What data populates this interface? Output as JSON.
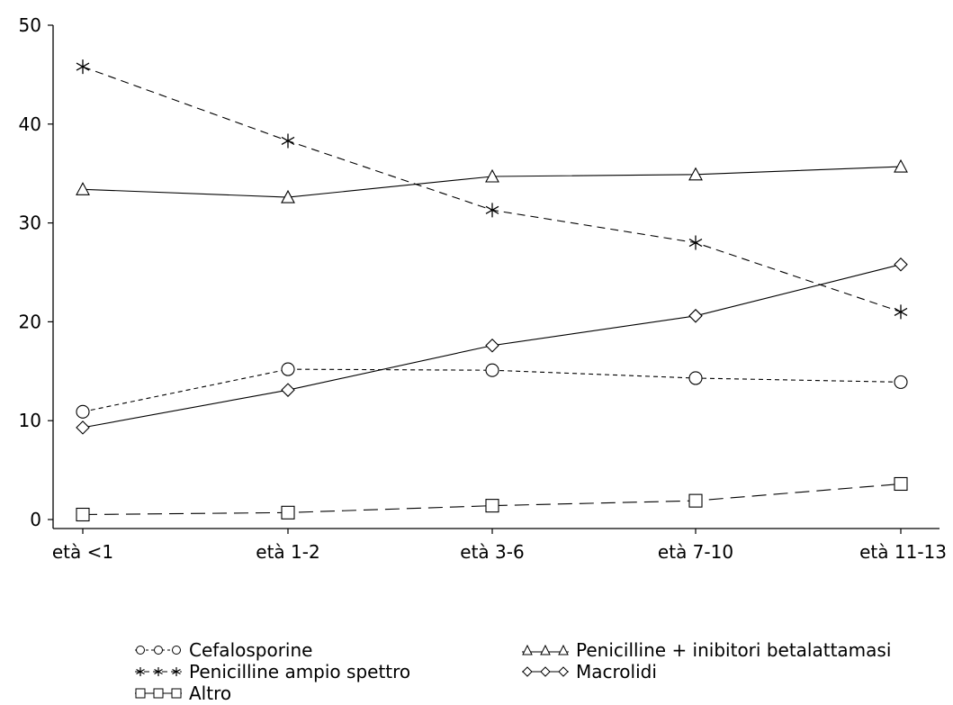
{
  "chart_data": {
    "type": "line",
    "categories": [
      "età <1",
      "età 1-2",
      "età 3-6",
      "età 7-10",
      "età 11-13"
    ],
    "ylim": [
      0,
      50
    ],
    "yticks": [
      0,
      10,
      20,
      30,
      40,
      50
    ],
    "grid": false,
    "legend_position": "bottom",
    "series": [
      {
        "name": "Cefalosporine",
        "marker": "circle",
        "dash": "short",
        "values": [
          10.9,
          15.2,
          15.1,
          14.3,
          13.9
        ]
      },
      {
        "name": "Penicilline + inibitori betalattamasi",
        "marker": "triangle",
        "dash": "solid",
        "values": [
          33.4,
          32.6,
          34.7,
          34.9,
          35.7
        ]
      },
      {
        "name": "Penicilline ampio spettro",
        "marker": "asterisk",
        "dash": "long",
        "values": [
          45.8,
          38.3,
          31.3,
          28.0,
          21.0
        ]
      },
      {
        "name": "Macrolidi",
        "marker": "diamond",
        "dash": "solid",
        "values": [
          9.3,
          13.1,
          17.6,
          20.6,
          25.8
        ]
      },
      {
        "name": "Altro",
        "marker": "square",
        "dash": "longest",
        "values": [
          0.5,
          0.7,
          1.4,
          1.9,
          3.6
        ]
      }
    ]
  }
}
